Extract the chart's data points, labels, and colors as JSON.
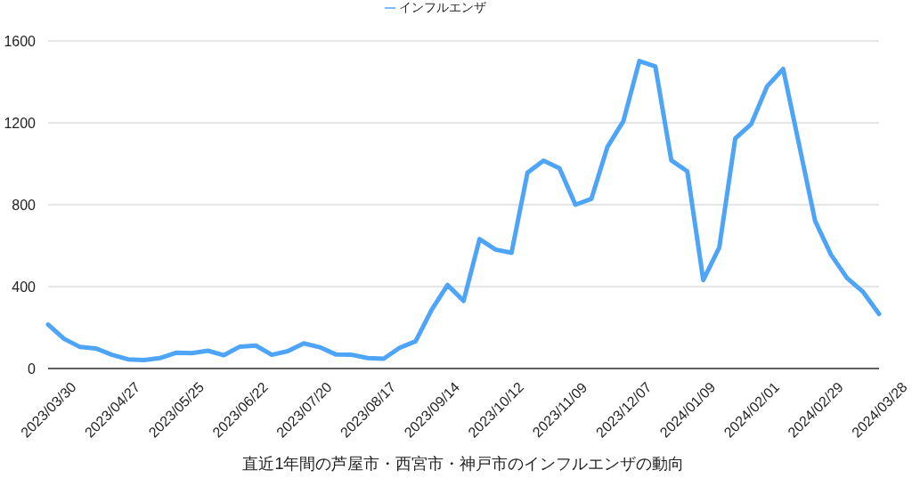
{
  "chart_data": {
    "type": "line",
    "xlabel": "直近1年間の芦屋市・西宮市・神戸市のインフルエンザの動向",
    "categories": [
      "2023/03/30",
      null,
      null,
      null,
      "2023/04/27",
      null,
      null,
      null,
      "2023/05/25",
      null,
      null,
      null,
      "2023/06/22",
      null,
      null,
      null,
      "2023/07/20",
      null,
      null,
      null,
      "2023/08/17",
      null,
      null,
      null,
      "2023/09/14",
      null,
      null,
      null,
      "2023/10/12",
      null,
      null,
      null,
      "2023/11/09",
      null,
      null,
      null,
      "2023/12/07",
      null,
      null,
      null,
      "2024/01/09",
      null,
      null,
      null,
      "2024/02/01",
      null,
      null,
      null,
      "2024/02/29",
      null,
      null,
      null,
      "2024/03/28"
    ],
    "series": [
      {
        "name": "インフルエンザ",
        "color": "#4ea5f8",
        "values": [
          215,
          145,
          105,
          98,
          67,
          45,
          41,
          51,
          77,
          75,
          87,
          65,
          107,
          112,
          67,
          85,
          123,
          104,
          69,
          67,
          51,
          48,
          101,
          133,
          286,
          408,
          330,
          632,
          581,
          565,
          957,
          1015,
          978,
          800,
          829,
          1082,
          1208,
          1502,
          1476,
          1017,
          963,
          432,
          591,
          1123,
          1194,
          1379,
          1463,
          1092,
          721,
          555,
          442,
          374,
          266
        ]
      }
    ],
    "ylim": [
      0,
      1600
    ],
    "yticks": [
      0,
      400,
      800,
      1200,
      1600
    ],
    "grid": "y",
    "legend": "top",
    "marker": "none",
    "line_style": "solid"
  }
}
